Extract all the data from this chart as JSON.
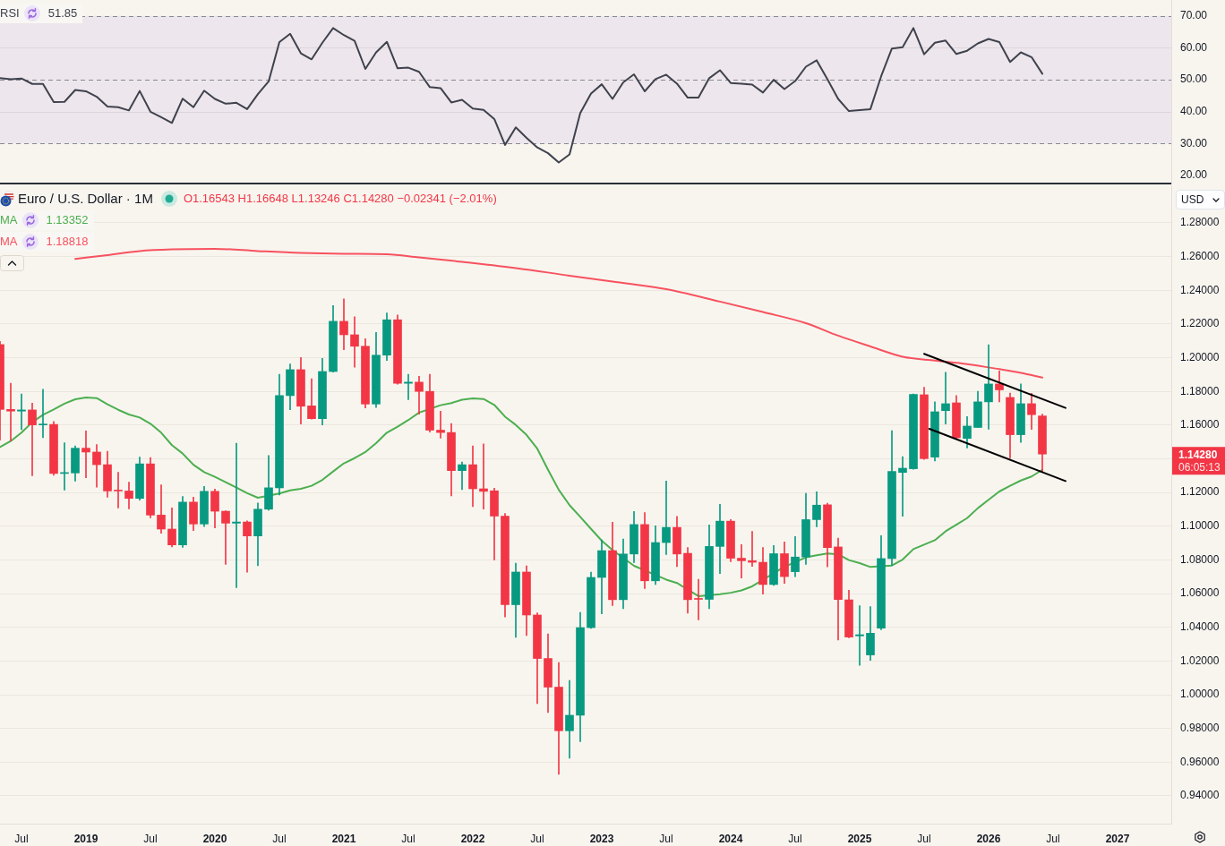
{
  "chart_data": [
    {
      "type": "line",
      "x": [
        "2018-05",
        "2018-06",
        "2018-07",
        "2018-08",
        "2018-09",
        "2018-10",
        "2018-11",
        "2018-12",
        "2019-01",
        "2019-02",
        "2019-03",
        "2019-04",
        "2019-05",
        "2019-06",
        "2019-07",
        "2019-08",
        "2019-09",
        "2019-10",
        "2019-11",
        "2019-12",
        "2020-01",
        "2020-02",
        "2020-03",
        "2020-04",
        "2020-05",
        "2020-06",
        "2020-07",
        "2020-08",
        "2020-09",
        "2020-10",
        "2020-11",
        "2020-12",
        "2021-01",
        "2021-02",
        "2021-03",
        "2021-04",
        "2021-05",
        "2021-06",
        "2021-07",
        "2021-08",
        "2021-09",
        "2021-10",
        "2021-11",
        "2021-12",
        "2022-01",
        "2022-02",
        "2022-03",
        "2022-04",
        "2022-05",
        "2022-06",
        "2022-07",
        "2022-08",
        "2022-09",
        "2022-10",
        "2022-11",
        "2022-12",
        "2023-01",
        "2023-02",
        "2023-03",
        "2023-04",
        "2023-05",
        "2023-06",
        "2023-07",
        "2023-08",
        "2023-09",
        "2023-10",
        "2023-11",
        "2023-12",
        "2024-01",
        "2024-02",
        "2024-03",
        "2024-04",
        "2024-05",
        "2024-06",
        "2024-07",
        "2024-08",
        "2024-09",
        "2024-10",
        "2024-11",
        "2024-12",
        "2025-01",
        "2025-02",
        "2025-03",
        "2025-04",
        "2025-05",
        "2025-06",
        "2025-07",
        "2025-08",
        "2025-09",
        "2025-10",
        "2025-11",
        "2025-12",
        "2026-01",
        "2026-02",
        "2026-03",
        "2026-04",
        "2026-05",
        "2026-06"
      ],
      "xlim": [
        "2018-05",
        "2027-06"
      ],
      "ylim": [
        17.5,
        75
      ],
      "yticks": [
        {
          "value": 20,
          "label": "20.00"
        },
        {
          "value": 30,
          "label": "30.00"
        },
        {
          "value": 40,
          "label": "40.00"
        },
        {
          "value": 50,
          "label": "50.00"
        },
        {
          "value": 60,
          "label": "60.00"
        },
        {
          "value": 70,
          "label": "70.00"
        }
      ],
      "tick_labels": "y",
      "legend": "top left",
      "marker": "none",
      "annotations": [
        "51.85"
      ],
      "bands": [
        {
          "axis": "y",
          "from": 30,
          "to": 70,
          "color": "#ede6ec"
        }
      ],
      "ref_lines": [
        {
          "axis": "y",
          "value": 70,
          "color": "#868993",
          "line_style": "dashed"
        },
        {
          "axis": "y",
          "value": 60,
          "color": "#dcd6dc",
          "line_style": "solid"
        },
        {
          "axis": "y",
          "value": 50,
          "color": "#868993",
          "line_style": "dashed"
        },
        {
          "axis": "y",
          "value": 40,
          "color": "#dcd6dc",
          "line_style": "solid"
        },
        {
          "axis": "y",
          "value": 30,
          "color": "#868993",
          "line_style": "dashed"
        }
      ],
      "series": [
        {
          "name": "RSI",
          "color": "#3f424d",
          "values": [
            50.5,
            50.2,
            50.4,
            48.7,
            48.7,
            43.0,
            43.1,
            46.8,
            46.4,
            44.7,
            41.6,
            41.4,
            40.4,
            46.5,
            40.0,
            38.3,
            36.5,
            44.1,
            41.4,
            46.6,
            44.0,
            42.5,
            42.8,
            40.8,
            45.5,
            49.5,
            61.8,
            64.4,
            58.3,
            56.4,
            61.6,
            66.2,
            64.0,
            62.2,
            53.4,
            58.6,
            61.9,
            53.6,
            53.8,
            52.5,
            47.7,
            47.4,
            42.9,
            43.7,
            41.0,
            40.6,
            37.7,
            29.6,
            35.1,
            31.8,
            28.8,
            27.0,
            24.1,
            26.6,
            39.6,
            45.7,
            48.6,
            44.0,
            49.2,
            51.7,
            46.4,
            50.2,
            51.6,
            48.8,
            44.4,
            44.4,
            50.5,
            53.0,
            49.0,
            48.8,
            48.5,
            46.0,
            50.0,
            47.1,
            49.6,
            54.1,
            56.1,
            50.2,
            44.0,
            40.2,
            40.5,
            40.8,
            51.1,
            59.8,
            60.2,
            66.2,
            58.0,
            61.6,
            62.3,
            58.1,
            59.1,
            61.4,
            62.8,
            61.8,
            55.6,
            58.6,
            57.1,
            51.9
          ]
        }
      ]
    },
    {
      "type": "candlestick",
      "title": "Euro / U.S. Dollar · 1M",
      "ylabel": "USD",
      "annotations": [
        "O1.16543 H1.16648 L1.13246 C1.14280 −0.02341 (−2.01%)",
        "1.14280",
        "06:05:13",
        "1.13352",
        "1.18818"
      ],
      "x": [
        "2018-05",
        "2018-06",
        "2018-07",
        "2018-08",
        "2018-09",
        "2018-10",
        "2018-11",
        "2018-12",
        "2019-01",
        "2019-02",
        "2019-03",
        "2019-04",
        "2019-05",
        "2019-06",
        "2019-07",
        "2019-08",
        "2019-09",
        "2019-10",
        "2019-11",
        "2019-12",
        "2020-01",
        "2020-02",
        "2020-03",
        "2020-04",
        "2020-05",
        "2020-06",
        "2020-07",
        "2020-08",
        "2020-09",
        "2020-10",
        "2020-11",
        "2020-12",
        "2021-01",
        "2021-02",
        "2021-03",
        "2021-04",
        "2021-05",
        "2021-06",
        "2021-07",
        "2021-08",
        "2021-09",
        "2021-10",
        "2021-11",
        "2021-12",
        "2022-01",
        "2022-02",
        "2022-03",
        "2022-04",
        "2022-05",
        "2022-06",
        "2022-07",
        "2022-08",
        "2022-09",
        "2022-10",
        "2022-11",
        "2022-12",
        "2023-01",
        "2023-02",
        "2023-03",
        "2023-04",
        "2023-05",
        "2023-06",
        "2023-07",
        "2023-08",
        "2023-09",
        "2023-10",
        "2023-11",
        "2023-12",
        "2024-01",
        "2024-02",
        "2024-03",
        "2024-04",
        "2024-05",
        "2024-06",
        "2024-07",
        "2024-08",
        "2024-09",
        "2024-10",
        "2024-11",
        "2024-12",
        "2025-01",
        "2025-02",
        "2025-03",
        "2025-04",
        "2025-05",
        "2025-06",
        "2025-07",
        "2025-08",
        "2025-09",
        "2025-10",
        "2025-11",
        "2025-12",
        "2026-01",
        "2026-02",
        "2026-03",
        "2026-04",
        "2026-05",
        "2026-06"
      ],
      "xlim": [
        "2018-05",
        "2027-06"
      ],
      "xticks": [
        {
          "value": "2018-07",
          "label": "Jul"
        },
        {
          "value": "2019-01",
          "label": "2019"
        },
        {
          "value": "2019-07",
          "label": "Jul"
        },
        {
          "value": "2020-01",
          "label": "2020"
        },
        {
          "value": "2020-07",
          "label": "Jul"
        },
        {
          "value": "2021-01",
          "label": "2021"
        },
        {
          "value": "2021-07",
          "label": "Jul"
        },
        {
          "value": "2022-01",
          "label": "2022"
        },
        {
          "value": "2022-07",
          "label": "Jul"
        },
        {
          "value": "2023-01",
          "label": "2023"
        },
        {
          "value": "2023-07",
          "label": "Jul"
        },
        {
          "value": "2024-01",
          "label": "2024"
        },
        {
          "value": "2024-07",
          "label": "Jul"
        },
        {
          "value": "2025-01",
          "label": "2025"
        },
        {
          "value": "2025-07",
          "label": "Jul"
        },
        {
          "value": "2026-01",
          "label": "2026"
        },
        {
          "value": "2026-07",
          "label": "Jul"
        },
        {
          "value": "2027-01",
          "label": "2027"
        }
      ],
      "ylim": [
        0.9235,
        1.3023
      ],
      "yticks": [
        {
          "value": 0.94,
          "label": "0.94000"
        },
        {
          "value": 0.96,
          "label": "0.96000"
        },
        {
          "value": 0.98,
          "label": "0.98000"
        },
        {
          "value": 1.0,
          "label": "1.00000"
        },
        {
          "value": 1.02,
          "label": "1.02000"
        },
        {
          "value": 1.04,
          "label": "1.04000"
        },
        {
          "value": 1.06,
          "label": "1.06000"
        },
        {
          "value": 1.08,
          "label": "1.08000"
        },
        {
          "value": 1.1,
          "label": "1.10000"
        },
        {
          "value": 1.12,
          "label": "1.12000"
        },
        {
          "value": 1.14,
          "label": null
        },
        {
          "value": 1.16,
          "label": "1.16000"
        },
        {
          "value": 1.18,
          "label": "1.18000"
        },
        {
          "value": 1.2,
          "label": "1.20000"
        },
        {
          "value": 1.22,
          "label": "1.22000"
        },
        {
          "value": 1.24,
          "label": "1.24000"
        },
        {
          "value": 1.26,
          "label": "1.26000"
        },
        {
          "value": 1.28,
          "label": "1.28000"
        }
      ],
      "grid": "y",
      "legend": "top left",
      "marker": "none",
      "ohlc": [
        [
          1.2078,
          1.2097,
          1.151,
          1.1693
        ],
        [
          1.1693,
          1.1849,
          1.1505,
          1.1683
        ],
        [
          1.1683,
          1.1785,
          1.1573,
          1.169
        ],
        [
          1.169,
          1.173,
          1.13,
          1.1601
        ],
        [
          1.1601,
          1.1812,
          1.1525,
          1.1604
        ],
        [
          1.1604,
          1.1622,
          1.1302,
          1.1313
        ],
        [
          1.1313,
          1.1495,
          1.1215,
          1.1316
        ],
        [
          1.1316,
          1.1477,
          1.1267,
          1.1463
        ],
        [
          1.1463,
          1.1565,
          1.1287,
          1.144
        ],
        [
          1.144,
          1.1485,
          1.1232,
          1.1365
        ],
        [
          1.1365,
          1.1445,
          1.1172,
          1.1209
        ],
        [
          1.1212,
          1.132,
          1.1108,
          1.1209
        ],
        [
          1.1209,
          1.1262,
          1.1103,
          1.1165
        ],
        [
          1.1165,
          1.141,
          1.1155,
          1.137
        ],
        [
          1.137,
          1.1408,
          1.105,
          1.1066
        ],
        [
          1.1066,
          1.1245,
          1.0958,
          1.0983
        ],
        [
          1.0983,
          1.1108,
          1.0877,
          1.0889
        ],
        [
          1.0889,
          1.1176,
          1.0874,
          1.1143
        ],
        [
          1.1143,
          1.1172,
          1.0974,
          1.1013
        ],
        [
          1.1013,
          1.1236,
          1.0998,
          1.1207
        ],
        [
          1.1207,
          1.122,
          1.099,
          1.1089
        ],
        [
          1.1089,
          1.1092,
          1.0774,
          1.1018
        ],
        [
          1.1018,
          1.1492,
          1.0636,
          1.1025
        ],
        [
          1.1025,
          1.1032,
          1.0727,
          1.0942
        ],
        [
          1.0942,
          1.1138,
          1.0765,
          1.1101
        ],
        [
          1.1101,
          1.142,
          1.1095,
          1.1228
        ],
        [
          1.1228,
          1.1902,
          1.1185,
          1.1775
        ],
        [
          1.1775,
          1.1963,
          1.1691,
          1.1929
        ],
        [
          1.1929,
          1.2001,
          1.1606,
          1.1712
        ],
        [
          1.1714,
          1.1875,
          1.1636,
          1.1638
        ],
        [
          1.1638,
          1.1996,
          1.1601,
          1.1918
        ],
        [
          1.1918,
          1.231,
          1.1914,
          1.2216
        ],
        [
          1.2216,
          1.2349,
          1.2047,
          1.2136
        ],
        [
          1.2136,
          1.2243,
          1.1944,
          1.2068
        ],
        [
          1.2068,
          1.2113,
          1.1702,
          1.1725
        ],
        [
          1.1725,
          1.215,
          1.1705,
          1.2015
        ],
        [
          1.2015,
          1.2266,
          1.1983,
          1.2225
        ],
        [
          1.2225,
          1.2254,
          1.1843,
          1.1848
        ],
        [
          1.1848,
          1.1901,
          1.1751,
          1.1855
        ],
        [
          1.1855,
          1.1889,
          1.1665,
          1.18
        ],
        [
          1.18,
          1.1901,
          1.1559,
          1.157
        ],
        [
          1.157,
          1.1683,
          1.1522,
          1.1556
        ],
        [
          1.1556,
          1.1609,
          1.118,
          1.133
        ],
        [
          1.133,
          1.1381,
          1.1217,
          1.1365
        ],
        [
          1.1365,
          1.1476,
          1.1116,
          1.1222
        ],
        [
          1.1222,
          1.1488,
          1.1101,
          1.1207
        ],
        [
          1.121,
          1.1225,
          1.08,
          1.106
        ],
        [
          1.106,
          1.1076,
          1.0462,
          1.0534
        ],
        [
          1.0534,
          1.0781,
          1.0341,
          1.0728
        ],
        [
          1.0728,
          1.0764,
          1.0351,
          1.0473
        ],
        [
          1.0473,
          1.0486,
          0.9947,
          1.0215
        ],
        [
          1.0215,
          1.0361,
          0.9894,
          1.0045
        ],
        [
          1.0045,
          1.0191,
          0.9528,
          0.9786
        ],
        [
          0.9786,
          1.0085,
          0.9623,
          0.9878
        ],
        [
          0.9878,
          1.0489,
          0.9722,
          1.0398
        ],
        [
          1.0398,
          1.0728,
          1.0393,
          1.0696
        ],
        [
          1.0696,
          1.0919,
          1.048,
          1.0855
        ],
        [
          1.0855,
          1.1024,
          1.0529,
          1.0564
        ],
        [
          1.0564,
          1.0924,
          1.0511,
          1.0835
        ],
        [
          1.0835,
          1.1088,
          1.0784,
          1.101
        ],
        [
          1.101,
          1.1081,
          1.063,
          1.0676
        ],
        [
          1.0676,
          1.1002,
          1.0654,
          1.0903
        ],
        [
          1.0903,
          1.1268,
          1.0832,
          1.0993
        ],
        [
          1.0993,
          1.1058,
          1.076,
          1.0835
        ],
        [
          1.0839,
          1.0874,
          1.0484,
          1.0564
        ],
        [
          1.057,
          1.0685,
          1.0444,
          1.0566
        ],
        [
          1.0566,
          1.1008,
          1.0511,
          1.088
        ],
        [
          1.088,
          1.113,
          1.0719,
          1.103
        ],
        [
          1.103,
          1.1039,
          1.079,
          1.081
        ],
        [
          1.081,
          1.0891,
          1.0693,
          1.0795
        ],
        [
          1.0795,
          1.0969,
          1.0762,
          1.0786
        ],
        [
          1.0786,
          1.0874,
          1.0597,
          1.0654
        ],
        [
          1.0654,
          1.0885,
          1.0648,
          1.0837
        ],
        [
          1.0837,
          1.0907,
          1.066,
          1.0701
        ],
        [
          1.073,
          1.0938,
          1.0701,
          1.0817
        ],
        [
          1.0817,
          1.1195,
          1.0773,
          1.1039
        ],
        [
          1.1039,
          1.1204,
          1.0997,
          1.1125
        ],
        [
          1.1127,
          1.1136,
          1.0759,
          1.0873
        ],
        [
          1.0877,
          1.093,
          1.0324,
          1.0565
        ],
        [
          1.0563,
          1.062,
          1.0338,
          1.0342
        ],
        [
          1.0349,
          1.0528,
          1.0174,
          1.0356
        ],
        [
          1.0236,
          1.0523,
          1.0204,
          1.0365
        ],
        [
          1.0395,
          1.0944,
          1.0386,
          1.0808
        ],
        [
          1.0808,
          1.1567,
          1.0767,
          1.1325
        ],
        [
          1.1319,
          1.1413,
          1.1059,
          1.1344
        ],
        [
          1.1341,
          1.1785,
          1.1338,
          1.1782
        ],
        [
          1.178,
          1.1824,
          1.1396,
          1.1401
        ],
        [
          1.141,
          1.1738,
          1.1387,
          1.1679
        ],
        [
          1.1686,
          1.1913,
          1.1606,
          1.1727
        ],
        [
          1.1732,
          1.1775,
          1.1516,
          1.1525
        ],
        [
          1.1521,
          1.1651,
          1.1464,
          1.1594
        ],
        [
          1.1586,
          1.18,
          1.1586,
          1.1738
        ],
        [
          1.1738,
          1.2077,
          1.1576,
          1.1844
        ],
        [
          1.1844,
          1.1922,
          1.1738,
          1.1809
        ],
        [
          1.1764,
          1.179,
          1.1404,
          1.1543
        ],
        [
          1.1543,
          1.1844,
          1.1498,
          1.1727
        ],
        [
          1.1727,
          1.1789,
          1.1574,
          1.1662
        ],
        [
          1.16543,
          1.16648,
          1.13246,
          1.1428
        ]
      ],
      "colors": [
        "#f23645",
        "#f23645",
        "#089981",
        "#f23645",
        "#089981",
        "#f23645",
        "#089981",
        "#089981",
        "#f23645",
        "#f23645",
        "#f23645",
        "#f23645",
        "#f23645",
        "#089981",
        "#f23645",
        "#f23645",
        "#f23645",
        "#089981",
        "#f23645",
        "#089981",
        "#f23645",
        "#f23645",
        "#089981",
        "#f23645",
        "#089981",
        "#089981",
        "#089981",
        "#089981",
        "#f23645",
        "#f23645",
        "#089981",
        "#089981",
        "#f23645",
        "#f23645",
        "#f23645",
        "#089981",
        "#089981",
        "#f23645",
        "#089981",
        "#f23645",
        "#f23645",
        "#f23645",
        "#f23645",
        "#089981",
        "#f23645",
        "#f23645",
        "#f23645",
        "#f23645",
        "#089981",
        "#f23645",
        "#f23645",
        "#f23645",
        "#f23645",
        "#089981",
        "#089981",
        "#089981",
        "#089981",
        "#f23645",
        "#089981",
        "#089981",
        "#f23645",
        "#089981",
        "#089981",
        "#f23645",
        "#f23645",
        "#f23645",
        "#089981",
        "#089981",
        "#f23645",
        "#f23645",
        "#f23645",
        "#f23645",
        "#089981",
        "#f23645",
        "#089981",
        "#089981",
        "#089981",
        "#f23645",
        "#f23645",
        "#f23645",
        "#089981",
        "#089981",
        "#089981",
        "#089981",
        "#089981",
        "#089981",
        "#f23645",
        "#089981",
        "#089981",
        "#f23645",
        "#089981",
        "#089981",
        "#089981",
        "#f23645",
        "#f23645",
        "#089981",
        "#f23645",
        "#f23645"
      ],
      "series": [
        {
          "type": "line",
          "name": "MA",
          "color": "#4caf50",
          "values": [
            1.1469,
            1.1505,
            1.1555,
            1.1617,
            1.1661,
            1.1693,
            1.1727,
            1.1753,
            1.1764,
            1.176,
            1.1723,
            1.1691,
            1.1663,
            1.1645,
            1.1608,
            1.1555,
            1.1481,
            1.1431,
            1.1365,
            1.1321,
            1.1293,
            1.1261,
            1.1229,
            1.1196,
            1.1169,
            null,
            1.1194,
            1.1213,
            1.1222,
            1.124,
            1.1275,
            1.1325,
            1.1373,
            1.1404,
            1.144,
            1.1493,
            1.1555,
            1.1591,
            1.163,
            1.1674,
            1.1696,
            1.1718,
            1.1731,
            1.1751,
            1.1758,
            1.1755,
            1.172,
            1.165,
            1.1601,
            1.1542,
            1.146,
            1.1335,
            1.1216,
            1.1125,
            1.1055,
            1.0984,
            1.0914,
            1.0858,
            null,
            1.0765,
            null,
            null,
            1.0683,
            1.0663,
            null,
            1.0585,
            null,
            1.0597,
            1.0605,
            1.0619,
            1.0643,
            null,
            null,
            1.0759,
            null,
            1.0815,
            1.0828,
            1.0838,
            1.0833,
            1.0799,
            1.0781,
            1.0758,
            null,
            1.0767,
            1.0802,
            1.0864,
            1.0891,
            1.0917,
            1.097,
            1.1009,
            1.1048,
            1.1107,
            1.1157,
            1.1206,
            1.124,
            1.1271,
            1.1295,
            1.1335
          ]
        },
        {
          "type": "line",
          "name": "MA",
          "color": "#f7525f",
          "x": [
            "2018-12",
            "2019-03",
            "2019-06",
            "2019-09",
            "2020-01",
            "2020-05",
            "2020-09",
            "2021-01",
            "2021-05",
            "2021-08",
            "2021-12",
            "2022-05",
            "2022-10",
            "2023-02",
            "2023-07",
            "2023-12",
            "2024-04",
            "2024-08",
            "2024-11",
            "2025-02",
            "2025-05",
            "2025-08",
            "2025-11",
            "2026-02",
            "2026-04",
            "2026-06"
          ],
          "values": [
            1.2586,
            1.2609,
            1.2633,
            1.2643,
            1.2646,
            1.2633,
            1.2622,
            1.2617,
            1.2614,
            1.2595,
            1.2569,
            1.2532,
            1.2487,
            1.2452,
            1.2407,
            1.2333,
            1.2271,
            1.2205,
            1.2131,
            1.2067,
            1.2006,
            1.1983,
            1.1962,
            1.1932,
            1.191,
            1.1882
          ]
        },
        {
          "type": "line",
          "color": "#000000",
          "x": [
            "2025-07-01",
            "2026-08-06"
          ],
          "values": [
            1.2023,
            1.1702
          ]
        },
        {
          "type": "line",
          "color": "#000000",
          "x": [
            "2025-07-16",
            "2026-08-06"
          ],
          "values": [
            1.1578,
            1.1268
          ]
        }
      ]
    }
  ]
}
